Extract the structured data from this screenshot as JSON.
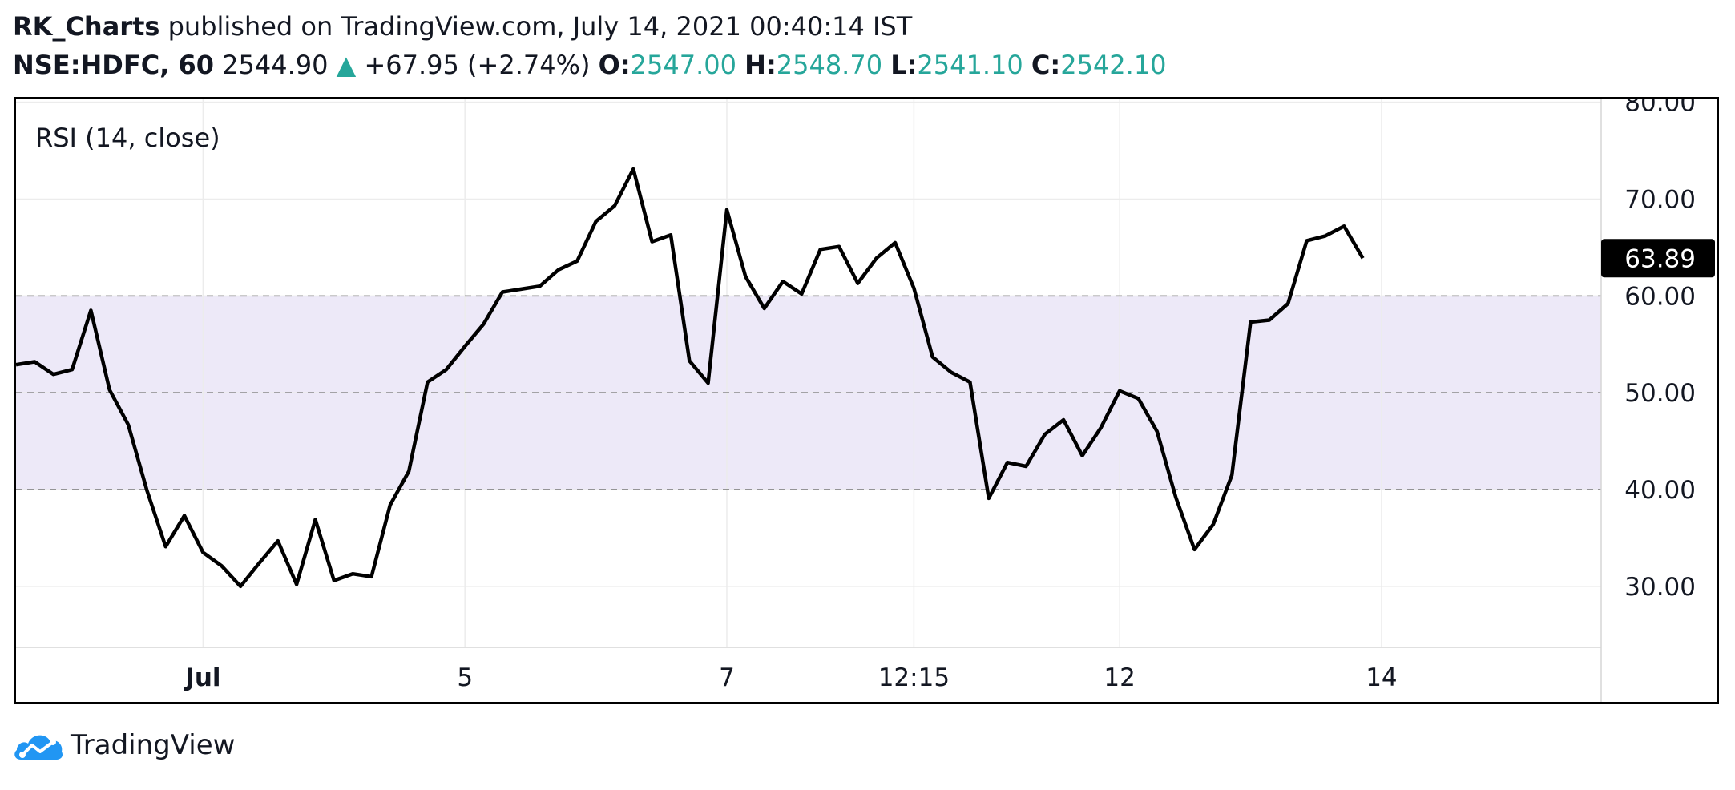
{
  "header": {
    "author": "RK_Charts",
    "published_text": "published on TradingView.com, July 14, 2021 00:40:14 IST",
    "symbol": "NSE:HDFC, 60",
    "price": "2544.90",
    "change": "+67.95 (+2.74%)",
    "open_label": "O:",
    "open_value": "2547.00",
    "high_label": "H:",
    "high_value": "2548.70",
    "low_label": "L:",
    "low_value": "2541.10",
    "close_label": "C:",
    "close_value": "2542.10"
  },
  "footer": {
    "brand": "TradingView"
  },
  "colors": {
    "up": "#26a69a",
    "band_fill": "#ede9f8",
    "line": "#000000",
    "grid": "#ececec",
    "level": "#777777"
  },
  "chart_data": {
    "type": "line",
    "indicator_label": "RSI (14, close)",
    "ylim": [
      23.7,
      80.3
    ],
    "ytick_labels": [
      "30.00",
      "40.00",
      "50.00",
      "60.00",
      "70.00",
      "80.00"
    ],
    "yticks": [
      30,
      40,
      50,
      60,
      70,
      80
    ],
    "levels": [
      40,
      50,
      60
    ],
    "band": [
      40,
      60
    ],
    "last_value_label": "63.89",
    "last_value": 63.89,
    "grid": true,
    "x_tick_labels": [
      {
        "label": "Jul",
        "index": 10,
        "bold": true
      },
      {
        "label": "5",
        "index": 24,
        "bold": false
      },
      {
        "label": "7",
        "index": 38,
        "bold": false
      },
      {
        "label": "12:15",
        "index": 48,
        "bold": false
      },
      {
        "label": "12",
        "index": 59,
        "bold": false
      },
      {
        "label": "14",
        "index": 73,
        "bold": false
      }
    ],
    "x_range": [
      0,
      82
    ],
    "values": [
      52.9,
      53.2,
      51.9,
      52.4,
      58.5,
      50.3,
      46.7,
      39.9,
      34.1,
      37.3,
      33.5,
      32.1,
      30.0,
      32.4,
      34.7,
      30.2,
      36.9,
      30.6,
      31.3,
      31.0,
      38.4,
      41.9,
      51.1,
      52.4,
      54.8,
      57.1,
      60.4,
      60.7,
      61.0,
      62.7,
      63.6,
      67.7,
      69.3,
      73.1,
      65.6,
      66.3,
      53.3,
      51.0,
      68.9,
      62.0,
      58.7,
      61.5,
      60.2,
      64.8,
      65.1,
      61.3,
      63.9,
      65.5,
      60.8,
      53.7,
      52.1,
      51.1,
      39.1,
      42.8,
      42.4,
      45.7,
      47.2,
      43.5,
      46.4,
      50.2,
      49.4,
      46.0,
      39.2,
      33.8,
      36.4,
      41.5,
      57.3,
      57.5,
      59.2,
      65.7,
      66.2,
      67.2,
      63.89
    ]
  }
}
